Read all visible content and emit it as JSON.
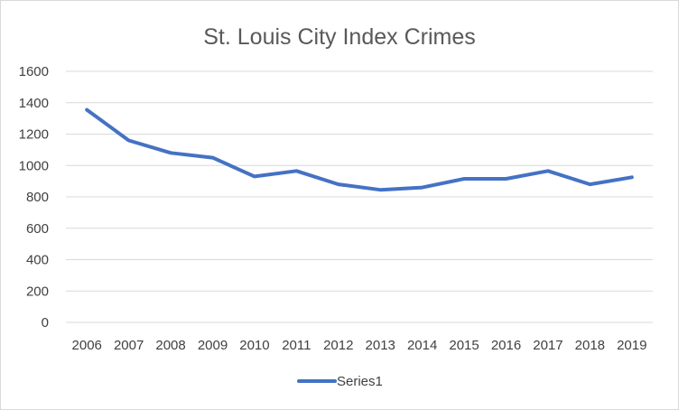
{
  "chart_data": {
    "type": "line",
    "title": "St. Louis City Index Crimes",
    "xlabel": "",
    "ylabel": "",
    "categories": [
      "2006",
      "2007",
      "2008",
      "2009",
      "2010",
      "2011",
      "2012",
      "2013",
      "2014",
      "2015",
      "2016",
      "2017",
      "2018",
      "2019"
    ],
    "series": [
      {
        "name": "Series1",
        "values": [
          1355,
          1160,
          1080,
          1050,
          930,
          965,
          880,
          845,
          860,
          915,
          915,
          965,
          880,
          925
        ],
        "color": "#4472c4"
      }
    ],
    "ylim": [
      0,
      1600
    ],
    "yticks": [
      "0",
      "200",
      "400",
      "600",
      "800",
      "1000",
      "1200",
      "1400",
      "1600"
    ],
    "grid": true,
    "grid_color": "#d9d9d9",
    "legend_position": "bottom"
  }
}
